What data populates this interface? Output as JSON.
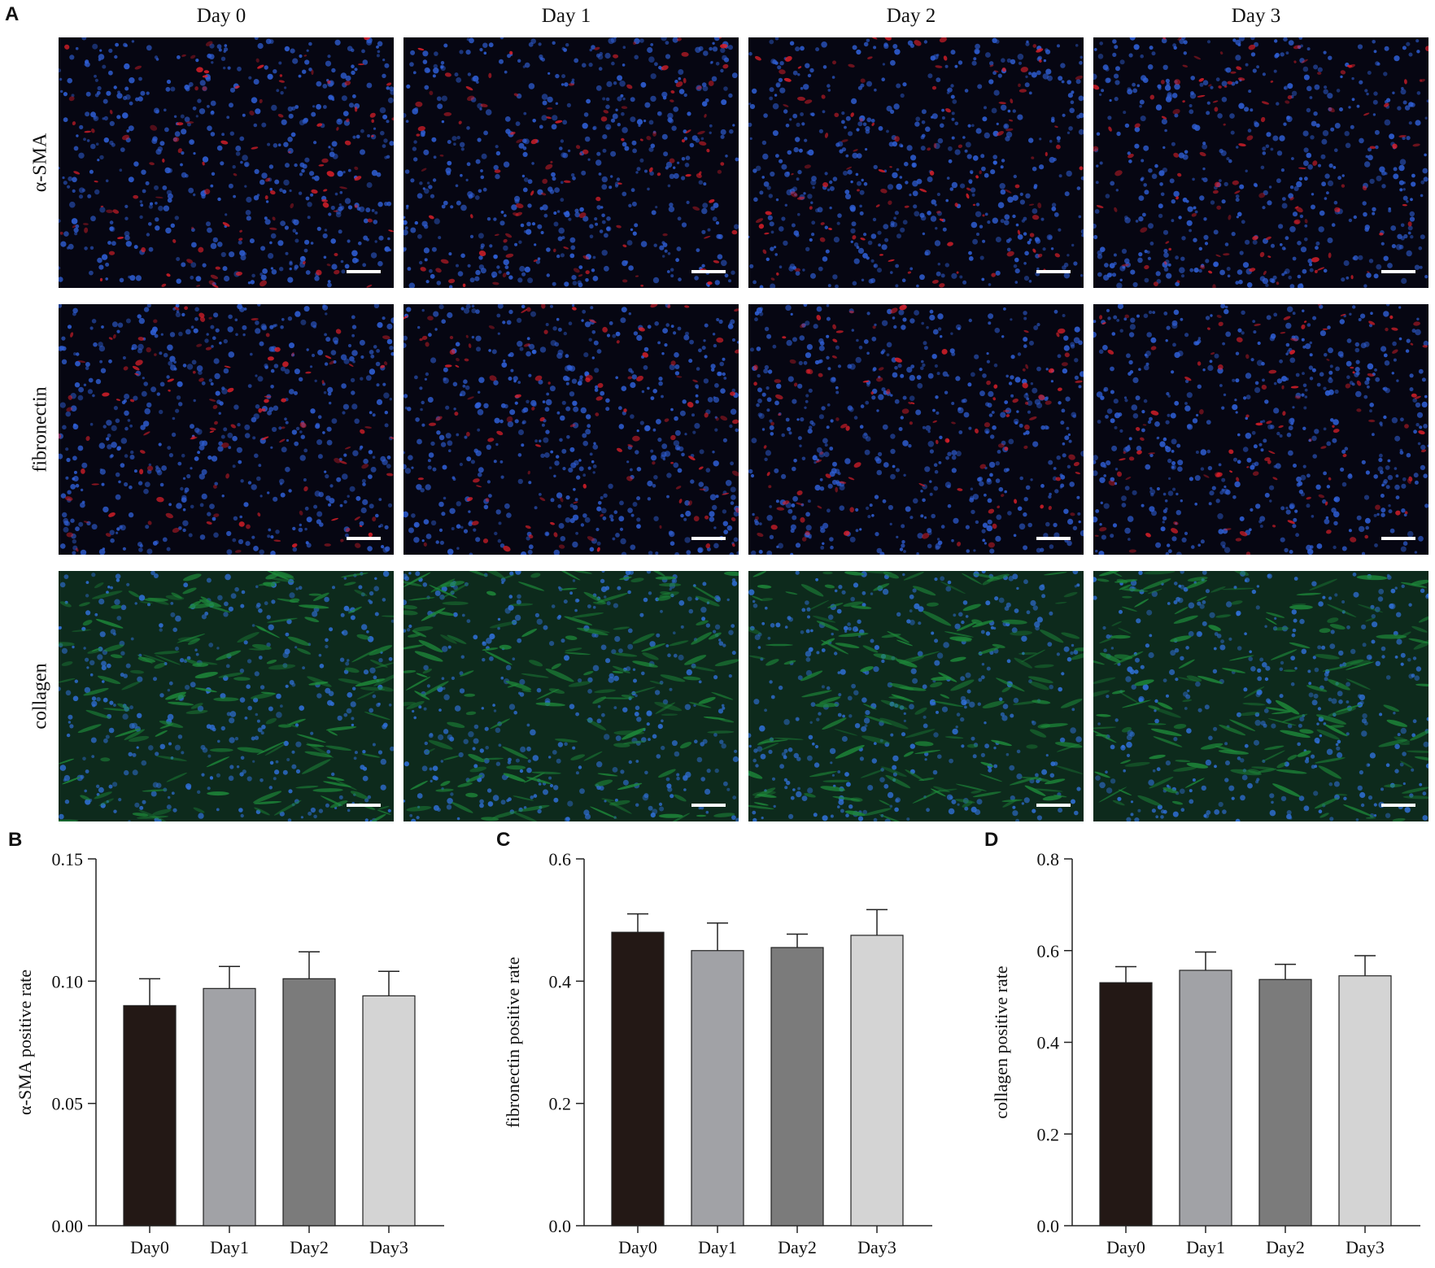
{
  "panel_a": {
    "letter": "A",
    "columns": [
      "Day 0",
      "Day 1",
      "Day 2",
      "Day 3"
    ],
    "rows": [
      {
        "label": "α-SMA",
        "stain_color": "#e0202a",
        "counter_color": "#2f5fd6"
      },
      {
        "label": "fibronectin",
        "stain_color": "#e0202a",
        "counter_color": "#2f5fd6"
      },
      {
        "label": "collagen",
        "stain_color": "#1e8a3a",
        "counter_color": "#2f6fd6"
      }
    ]
  },
  "chart_data": [
    {
      "letter": "B",
      "type": "bar",
      "categories": [
        "Day0",
        "Day1",
        "Day2",
        "Day3"
      ],
      "values": [
        0.09,
        0.097,
        0.101,
        0.094
      ],
      "errors": [
        0.011,
        0.009,
        0.011,
        0.01
      ],
      "ylabel": "α-SMA positive rate",
      "ylim": [
        0,
        0.15
      ],
      "yticks": [
        "0.00",
        "0.05",
        "0.10",
        "0.15"
      ],
      "bar_colors": [
        "#231815",
        "#a1a2a6",
        "#7b7b7b",
        "#d4d4d4"
      ]
    },
    {
      "letter": "C",
      "type": "bar",
      "categories": [
        "Day0",
        "Day1",
        "Day2",
        "Day3"
      ],
      "values": [
        0.48,
        0.45,
        0.455,
        0.475
      ],
      "errors": [
        0.03,
        0.045,
        0.022,
        0.042
      ],
      "ylabel": "fibronectin positive rate",
      "ylim": [
        0,
        0.6
      ],
      "yticks": [
        "0.0",
        "0.2",
        "0.4",
        "0.6"
      ],
      "bar_colors": [
        "#231815",
        "#a1a2a6",
        "#7b7b7b",
        "#d4d4d4"
      ]
    },
    {
      "letter": "D",
      "type": "bar",
      "categories": [
        "Day0",
        "Day1",
        "Day2",
        "Day3"
      ],
      "values": [
        0.53,
        0.557,
        0.537,
        0.545
      ],
      "errors": [
        0.035,
        0.04,
        0.033,
        0.044
      ],
      "ylabel": "collagen positive rate",
      "ylim": [
        0,
        0.8
      ],
      "yticks": [
        "0.0",
        "0.2",
        "0.4",
        "0.6",
        "0.8"
      ],
      "bar_colors": [
        "#231815",
        "#a1a2a6",
        "#7b7b7b",
        "#d4d4d4"
      ]
    }
  ]
}
